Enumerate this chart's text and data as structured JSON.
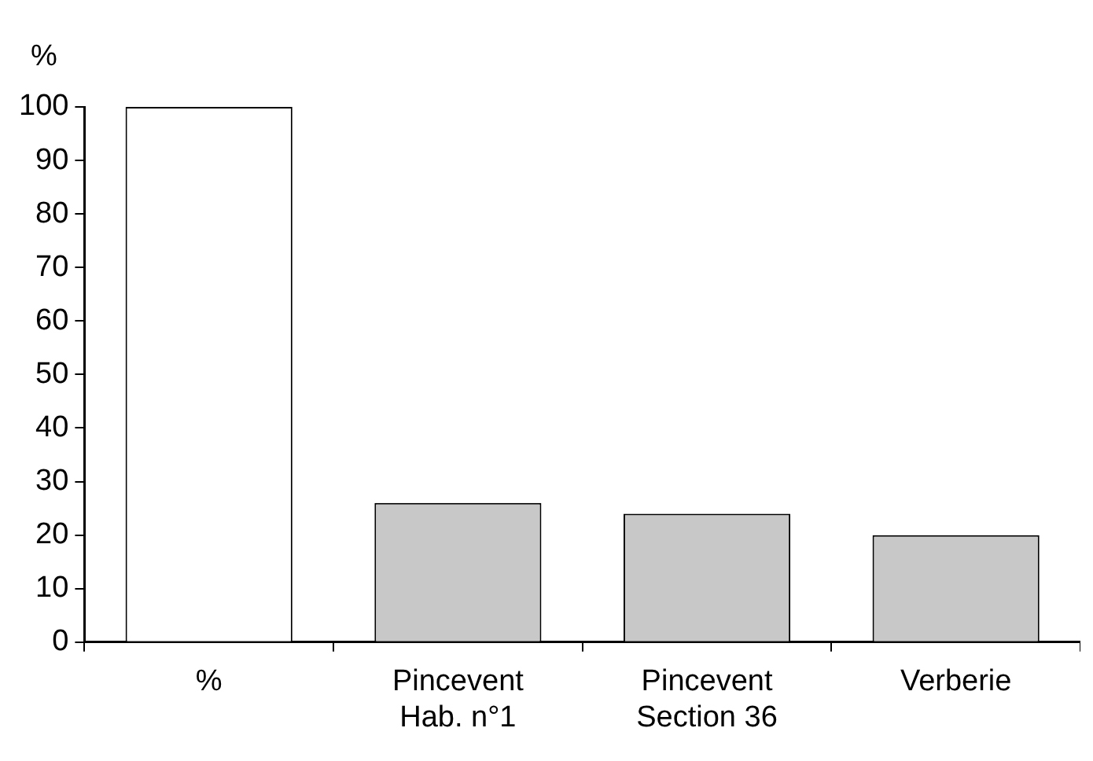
{
  "chart_data": {
    "type": "bar",
    "ylabel": "%",
    "categories": [
      "%",
      "Pincevent\nHab. n°1",
      "Pincevent\nSection 36",
      "Verberie"
    ],
    "values": [
      100,
      26,
      24,
      20
    ],
    "colors": [
      "#ffffff",
      "#c8c8c8",
      "#c8c8c8",
      "#c8c8c8"
    ],
    "ylim": [
      0,
      100
    ],
    "yticks": [
      0,
      10,
      20,
      30,
      40,
      50,
      60,
      70,
      80,
      90,
      100
    ],
    "grid": false,
    "legend": false
  }
}
